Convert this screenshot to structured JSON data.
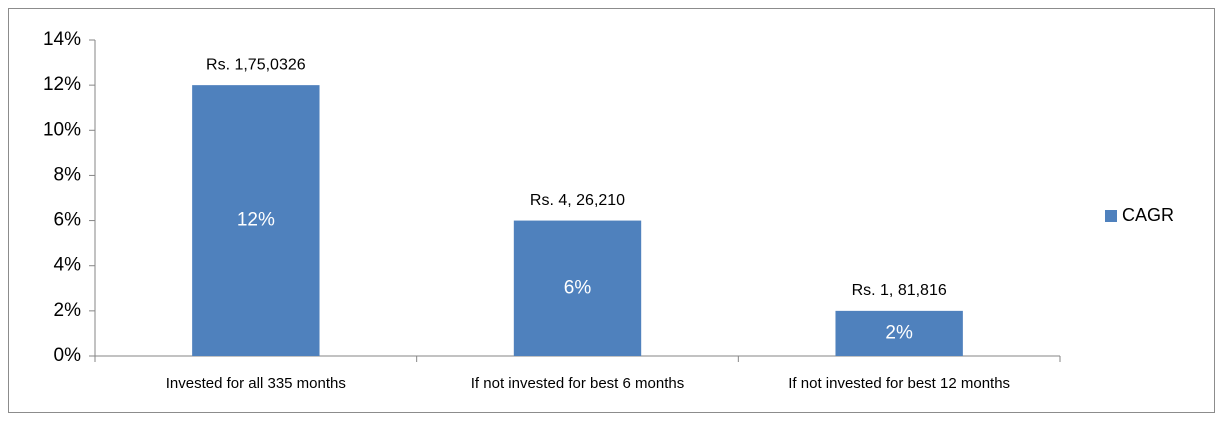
{
  "chart_data": {
    "type": "bar",
    "categories": [
      "Invested for all 335 months",
      "If not invested for best 6 months",
      "If not invested for best 12 months"
    ],
    "series": [
      {
        "name": "CAGR",
        "color": "#4f81bd",
        "values": [
          12,
          6,
          2
        ],
        "value_labels": [
          "12%",
          "6%",
          "2%"
        ]
      }
    ],
    "annotations": [
      "Rs. 1,75,0326",
      "Rs. 4, 26,210",
      "Rs. 1, 81,816"
    ],
    "ylim": [
      0,
      14
    ],
    "yticks": [
      {
        "value": 0,
        "label": "0%"
      },
      {
        "value": 2,
        "label": "2%"
      },
      {
        "value": 4,
        "label": "4%"
      },
      {
        "value": 6,
        "label": "6%"
      },
      {
        "value": 8,
        "label": "8%"
      },
      {
        "value": 10,
        "label": "10%"
      },
      {
        "value": 12,
        "label": "12%"
      },
      {
        "value": 14,
        "label": "14%"
      }
    ],
    "legend": "right"
  }
}
